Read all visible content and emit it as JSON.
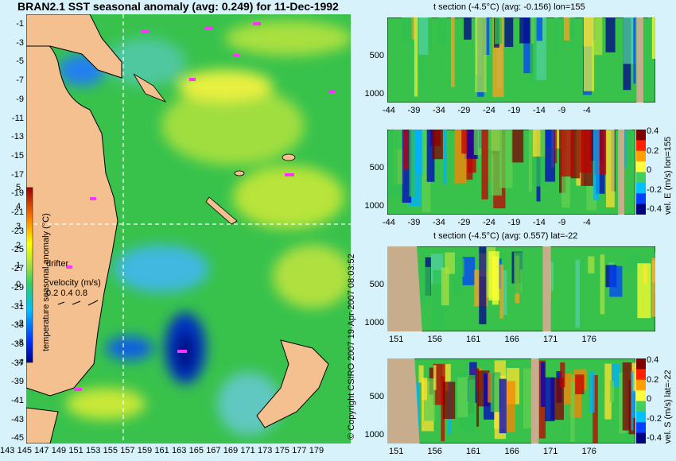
{
  "map": {
    "title": "BRAN2.1 SST seasonal anomaly (avg: 0.249) for 11-Dec-1992",
    "lat_ticks": [
      "-1",
      "-3",
      "-5",
      "-7",
      "-9",
      "-11",
      "-13",
      "-15",
      "-17",
      "-19",
      "-21",
      "-23",
      "-25",
      "-27",
      "-29",
      "-31",
      "-33",
      "-35",
      "-37",
      "-39",
      "-41",
      "-43",
      "-45"
    ],
    "lon_ticks": [
      "143",
      "145",
      "147",
      "149",
      "151",
      "153",
      "155",
      "157",
      "159",
      "161",
      "163",
      "165",
      "167",
      "169",
      "171",
      "173",
      "175",
      "177",
      "179"
    ],
    "colorbar_ticks": [
      "5",
      "4",
      "3",
      "2",
      "1",
      "0",
      "-1",
      "-2",
      "-3",
      "-4"
    ],
    "colorbar_label": "temperature seasonal anomaly (°C)",
    "drifter_label": "drifter",
    "velocity_label": "velocity (m/s)",
    "velocity_values": "0.2 0.4 0.8",
    "colors": {
      "land": "#f5c08f",
      "background_anomaly": "#3cc850",
      "drifter": "#ff33ff"
    }
  },
  "copyright": "© Copyright CSIRO 2007   19-Apr-2007 08:03:52",
  "sections": [
    {
      "title": "t section (-4.5°C) (avg: -0.156) lon=155",
      "x_ticks": [
        "-44",
        "-39",
        "-34",
        "-29",
        "-24",
        "-19",
        "-14",
        "-9",
        "-4"
      ],
      "y_ticks": [
        "500",
        "1000"
      ],
      "side_label": "",
      "cbar_ticks": []
    },
    {
      "title": "",
      "x_ticks": [
        "-44",
        "-39",
        "-34",
        "-29",
        "-24",
        "-19",
        "-14",
        "-9",
        "-4"
      ],
      "y_ticks": [
        "500",
        "1000"
      ],
      "side_label": "vel. E (m/s) lon=155",
      "cbar_ticks": [
        "0.4",
        "0.2",
        "0",
        "-0.2",
        "-0.4"
      ]
    },
    {
      "title": "t section (-4.5°C) (avg: 0.557) lat=-22",
      "x_ticks": [
        "151",
        "156",
        "161",
        "166",
        "171",
        "176"
      ],
      "y_ticks": [
        "500",
        "1000"
      ],
      "side_label": "",
      "cbar_ticks": []
    },
    {
      "title": "",
      "x_ticks": [
        "151",
        "156",
        "161",
        "166",
        "171",
        "176"
      ],
      "y_ticks": [
        "500",
        "1000"
      ],
      "side_label": "vel. S (m/s) lat=-22",
      "cbar_ticks": [
        "0.4",
        "0.2",
        "0",
        "-0.2",
        "-0.4"
      ]
    }
  ],
  "chart_data": [
    {
      "type": "heatmap",
      "title": "BRAN2.1 SST seasonal anomaly (avg: 0.249) for 11-Dec-1992",
      "xlabel": "",
      "ylabel": "",
      "xlim": [
        143,
        180
      ],
      "ylim": [
        -45,
        0
      ],
      "colorbar_label": "temperature seasonal anomaly (°C)",
      "colorbar_range": [
        -4,
        5
      ],
      "average": 0.249
    },
    {
      "type": "heatmap",
      "title": "t section (-4.5°C) (avg: -0.156) lon=155",
      "x": [
        -44,
        -39,
        -34,
        -29,
        -24,
        -19,
        -14,
        -9,
        -4
      ],
      "y": [
        500,
        1000
      ],
      "average": -0.156
    },
    {
      "type": "heatmap",
      "title": "",
      "colorbar_label": "vel. E (m/s) lon=155",
      "colorbar_range": [
        -0.4,
        0.4
      ],
      "x": [
        -44,
        -39,
        -34,
        -29,
        -24,
        -19,
        -14,
        -9,
        -4
      ],
      "y": [
        500,
        1000
      ]
    },
    {
      "type": "heatmap",
      "title": "t section (-4.5°C) (avg: 0.557) lat=-22",
      "x": [
        151,
        156,
        161,
        166,
        171,
        176
      ],
      "y": [
        500,
        1000
      ],
      "average": 0.557
    },
    {
      "type": "heatmap",
      "title": "",
      "colorbar_label": "vel. S (m/s) lat=-22",
      "colorbar_range": [
        -0.4,
        0.4
      ],
      "x": [
        151,
        156,
        161,
        166,
        171,
        176
      ],
      "y": [
        500,
        1000
      ]
    }
  ]
}
